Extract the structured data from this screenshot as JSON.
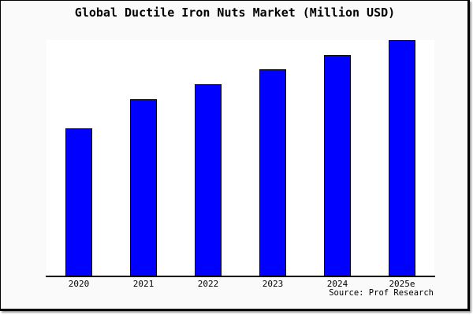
{
  "window": {
    "page_background": "#ffffff",
    "figure_background": "#fafafa",
    "frame_border_color": "#000000",
    "shadow_color": "#9a9a9a"
  },
  "source": "Source: Prof Research",
  "chart_data": {
    "type": "bar",
    "title": "Global Ductile Iron Nuts Market (Million USD)",
    "categories": [
      "2020",
      "2021",
      "2022",
      "2023",
      "2024",
      "2025e"
    ],
    "values": [
      250,
      300,
      325,
      350,
      375,
      400
    ],
    "xlabel": "",
    "ylabel": "",
    "ylim": [
      0,
      400
    ],
    "grid": false,
    "legend": false,
    "y_axis_visible": false,
    "bar_fill": "#0000ff",
    "bar_edge": "#000000",
    "plot_background": "#ffffff"
  }
}
